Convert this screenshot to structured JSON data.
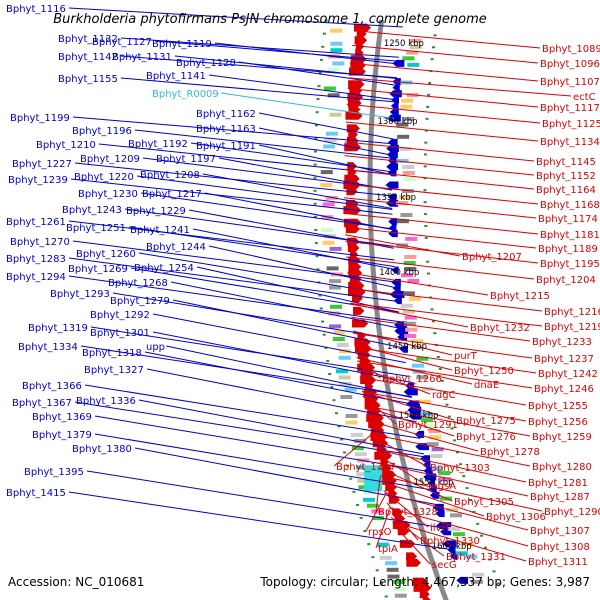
{
  "title": "Burkholderia phytofirmans PsJN chromosome 1, complete genome",
  "accession": "Accession: NC_010681",
  "summary": "Topology: circular; Length: 4,467,537 bp; Genes: 3,987",
  "colors": {
    "forward": "#0000cc",
    "reverse": "#dd0000",
    "rna": "#33bbcc",
    "backbone": "#888888",
    "ticks": "#2e8b2e"
  },
  "kbp_labels": [
    "1250 kbp",
    "1300 kbp",
    "1350 kbp",
    "1400 kbp",
    "1450 kbp",
    "1500 kbp",
    "1550 kbp",
    "1600 kbp"
  ],
  "left_labels": [
    {
      "text": "Bphyt_1116",
      "kind": "forward"
    },
    {
      "text": "Bphyt_1132",
      "kind": "forward"
    },
    {
      "text": "Bphyt_1127",
      "kind": "forward"
    },
    {
      "text": "Bphyt_1119",
      "kind": "forward"
    },
    {
      "text": "Bphyt_1142",
      "kind": "forward"
    },
    {
      "text": "Bphyt_1131",
      "kind": "forward"
    },
    {
      "text": "Bphyt_1128",
      "kind": "forward"
    },
    {
      "text": "Bphyt_1155",
      "kind": "forward"
    },
    {
      "text": "Bphyt_1141",
      "kind": "forward"
    },
    {
      "text": "Bphyt_R0009",
      "kind": "rna"
    },
    {
      "text": "Bphyt_1162",
      "kind": "forward"
    },
    {
      "text": "Bphyt_1199",
      "kind": "forward"
    },
    {
      "text": "Bphyt_1163",
      "kind": "forward"
    },
    {
      "text": "Bphyt_1196",
      "kind": "forward"
    },
    {
      "text": "Bphyt_1192",
      "kind": "forward"
    },
    {
      "text": "Bphyt_1191",
      "kind": "forward"
    },
    {
      "text": "Bphyt_1210",
      "kind": "forward"
    },
    {
      "text": "Bphyt_1209",
      "kind": "forward"
    },
    {
      "text": "Bphyt_1197",
      "kind": "forward"
    },
    {
      "text": "Bphyt_1227",
      "kind": "forward"
    },
    {
      "text": "Bphyt_1220",
      "kind": "forward"
    },
    {
      "text": "Bphyt_1208",
      "kind": "forward"
    },
    {
      "text": "Bphyt_1239",
      "kind": "forward"
    },
    {
      "text": "Bphyt_1230",
      "kind": "forward"
    },
    {
      "text": "Bphyt_1217",
      "kind": "forward"
    },
    {
      "text": "Bphyt_1243",
      "kind": "forward"
    },
    {
      "text": "Bphyt_1229",
      "kind": "forward"
    },
    {
      "text": "Bphyt_1261",
      "kind": "forward"
    },
    {
      "text": "Bphyt_1251",
      "kind": "forward"
    },
    {
      "text": "Bphyt_1241",
      "kind": "forward"
    },
    {
      "text": "Bphyt_1270",
      "kind": "forward"
    },
    {
      "text": "Bphyt_1244",
      "kind": "forward"
    },
    {
      "text": "Bphyt_1260",
      "kind": "forward"
    },
    {
      "text": "Bphyt_1283",
      "kind": "forward"
    },
    {
      "text": "Bphyt_1269",
      "kind": "forward"
    },
    {
      "text": "Bphyt_1254",
      "kind": "forward"
    },
    {
      "text": "Bphyt_1294",
      "kind": "forward"
    },
    {
      "text": "Bphyt_1268",
      "kind": "forward"
    },
    {
      "text": "Bphyt_1293",
      "kind": "forward"
    },
    {
      "text": "Bphyt_1279",
      "kind": "forward"
    },
    {
      "text": "Bphyt_1292",
      "kind": "forward"
    },
    {
      "text": "Bphyt_1319",
      "kind": "forward"
    },
    {
      "text": "Bphyt_1301",
      "kind": "forward"
    },
    {
      "text": "Bphyt_1334",
      "kind": "forward"
    },
    {
      "text": "upp",
      "kind": "forward"
    },
    {
      "text": "Bphyt_1318",
      "kind": "forward"
    },
    {
      "text": "Bphyt_1327",
      "kind": "forward"
    },
    {
      "text": "Bphyt_1366",
      "kind": "forward"
    },
    {
      "text": "Bphyt_1336",
      "kind": "forward"
    },
    {
      "text": "Bphyt_1367",
      "kind": "forward"
    },
    {
      "text": "Bphyt_1369",
      "kind": "forward"
    },
    {
      "text": "Bphyt_1379",
      "kind": "forward"
    },
    {
      "text": "Bphyt_1380",
      "kind": "forward"
    },
    {
      "text": "Bphyt_1395",
      "kind": "forward"
    },
    {
      "text": "Bphyt_1415",
      "kind": "forward"
    }
  ],
  "right_labels": [
    {
      "text": "Bphyt_1089",
      "kind": "reverse"
    },
    {
      "text": "Bphyt_1096",
      "kind": "reverse"
    },
    {
      "text": "Bphyt_1107",
      "kind": "reverse"
    },
    {
      "text": "ectC",
      "kind": "reverse"
    },
    {
      "text": "Bphyt_1117",
      "kind": "reverse"
    },
    {
      "text": "Bphyt_1125",
      "kind": "reverse"
    },
    {
      "text": "Bphyt_1134",
      "kind": "reverse"
    },
    {
      "text": "Bphyt_1145",
      "kind": "reverse"
    },
    {
      "text": "Bphyt_1152",
      "kind": "reverse"
    },
    {
      "text": "Bphyt_1164",
      "kind": "reverse"
    },
    {
      "text": "Bphyt_1168",
      "kind": "reverse"
    },
    {
      "text": "Bphyt_1174",
      "kind": "reverse"
    },
    {
      "text": "Bphyt_1181",
      "kind": "reverse"
    },
    {
      "text": "Bphyt_1189",
      "kind": "reverse"
    },
    {
      "text": "Bphyt_1207",
      "kind": "reverse"
    },
    {
      "text": "Bphyt_1195",
      "kind": "reverse"
    },
    {
      "text": "Bphyt_1204",
      "kind": "reverse"
    },
    {
      "text": "Bphyt_1215",
      "kind": "reverse"
    },
    {
      "text": "Bphyt_1216",
      "kind": "reverse"
    },
    {
      "text": "Bphyt_1219",
      "kind": "reverse"
    },
    {
      "text": "Bphyt_1232",
      "kind": "reverse"
    },
    {
      "text": "Bphyt_1233",
      "kind": "reverse"
    },
    {
      "text": "purT",
      "kind": "reverse"
    },
    {
      "text": "Bphyt_1237",
      "kind": "reverse"
    },
    {
      "text": "Bphyt_1250",
      "kind": "reverse"
    },
    {
      "text": "Bphyt_1242",
      "kind": "reverse"
    },
    {
      "text": "Bphyt_1266",
      "kind": "reverse"
    },
    {
      "text": "dnaE",
      "kind": "reverse"
    },
    {
      "text": "Bphyt_1246",
      "kind": "reverse"
    },
    {
      "text": "rdgC",
      "kind": "reverse"
    },
    {
      "text": "Bphyt_1255",
      "kind": "reverse"
    },
    {
      "text": "Bphyt_1291",
      "kind": "reverse"
    },
    {
      "text": "Bphyt_1275",
      "kind": "reverse"
    },
    {
      "text": "Bphyt_1256",
      "kind": "reverse"
    },
    {
      "text": "Bphyt_1276",
      "kind": "reverse"
    },
    {
      "text": "Bphyt_1259",
      "kind": "reverse"
    },
    {
      "text": "Bphyt_1278",
      "kind": "reverse"
    },
    {
      "text": "Bphyt_1317",
      "kind": "reverse"
    },
    {
      "text": "Bphyt_1303",
      "kind": "reverse"
    },
    {
      "text": "Bphyt_1280",
      "kind": "reverse"
    },
    {
      "text": "mgsA",
      "kind": "reverse"
    },
    {
      "text": "Bphyt_1281",
      "kind": "reverse"
    },
    {
      "text": "Bphyt_1287",
      "kind": "reverse"
    },
    {
      "text": "Bphyt_1305",
      "kind": "reverse"
    },
    {
      "text": "Bphyt_1328",
      "kind": "reverse"
    },
    {
      "text": "Bphyt_1306",
      "kind": "reverse"
    },
    {
      "text": "Bphyt_1290",
      "kind": "reverse"
    },
    {
      "text": "rpsO",
      "kind": "reverse"
    },
    {
      "text": "ilvH",
      "kind": "reverse"
    },
    {
      "text": "Bphyt_1307",
      "kind": "reverse"
    },
    {
      "text": "Bphyt_1330",
      "kind": "reverse"
    },
    {
      "text": "tpiA",
      "kind": "reverse"
    },
    {
      "text": "Bphyt_1308",
      "kind": "reverse"
    },
    {
      "text": "Bphyt_1331",
      "kind": "reverse"
    },
    {
      "text": "Bphyt_1311",
      "kind": "reverse"
    },
    {
      "text": "secG",
      "kind": "reverse"
    }
  ]
}
